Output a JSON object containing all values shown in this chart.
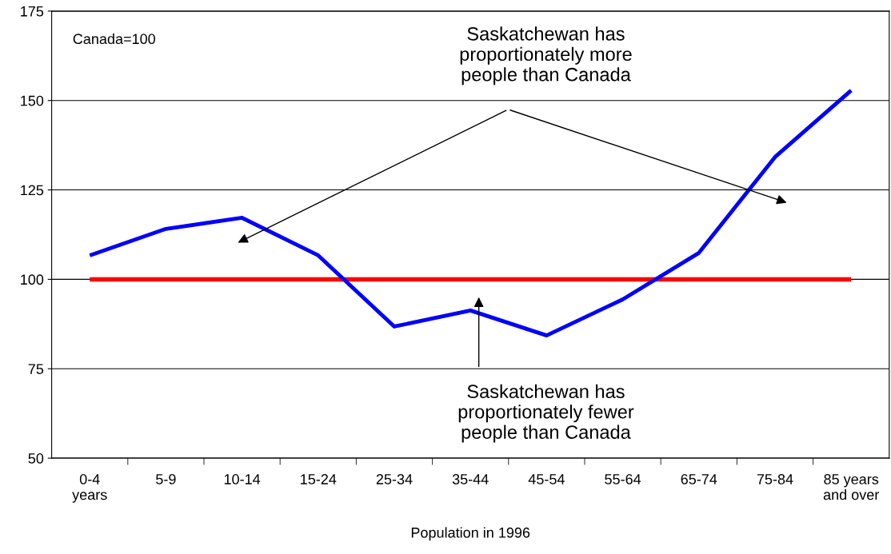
{
  "chart_data": {
    "type": "line",
    "xlabel": "Population in 1996",
    "categories": [
      "0-4\nyears",
      "5-9",
      "10-14",
      "15-24",
      "25-34",
      "35-44",
      "45-54",
      "55-64",
      "65-74",
      "75-84",
      "85 years\nand over"
    ],
    "series": [
      {
        "color": "#ff0000",
        "values": [
          100,
          100,
          100,
          100,
          100,
          100,
          100,
          100,
          100,
          100,
          100
        ]
      },
      {
        "color": "#0000ff",
        "values": [
          106.7,
          114.1,
          117.2,
          106.7,
          86.8,
          91.3,
          84.3,
          94.4,
          107.4,
          134.2,
          152.8
        ]
      }
    ],
    "ylim": [
      50,
      175
    ],
    "yticks": [
      50,
      75,
      100,
      125,
      150,
      175
    ],
    "grid": "y",
    "marker": "none",
    "line_style": "solid",
    "annotations": [
      "Canada=100",
      "Saskatchewan has\nproportionately more\npeople than Canada",
      "Saskatchewan has\nproportionately fewer\npeople than Canada"
    ]
  }
}
